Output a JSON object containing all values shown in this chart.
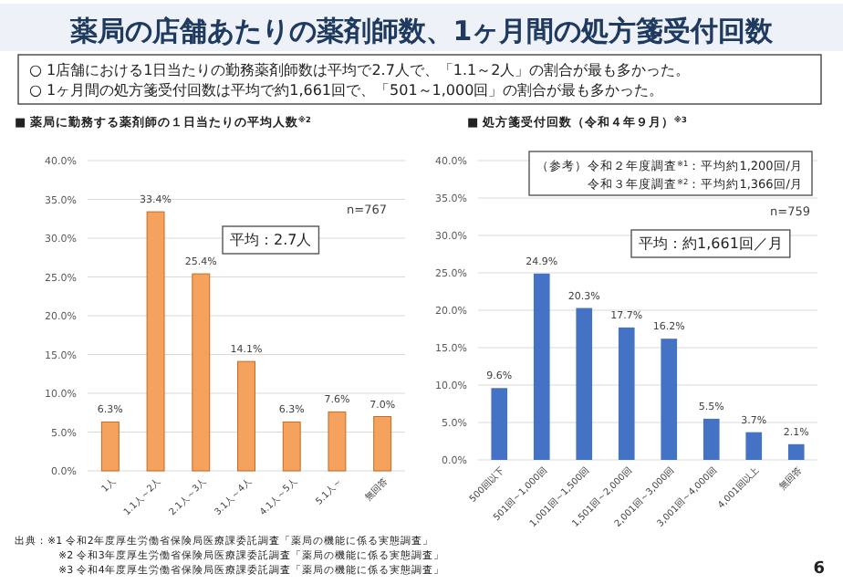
{
  "chart_data": [
    {
      "type": "bar",
      "title": "薬局の店舗あたりの薬剤師数、1ヶ月間の処方箋受付回数",
      "subtitle": "■ 薬局に勤務する薬剤師の１日当たりの平均人数$^{※2}$",
      "categories": [
        "1人",
        "1.1人～2人",
        "2.1人～3人",
        "3.1人～4人",
        "4.1人～5人",
        "5.1人～",
        "無回答"
      ],
      "values": [
        6.3,
        33.4,
        25.4,
        14.1,
        6.3,
        7.6,
        7.0
      ],
      "value_labels": [
        "6.3%",
        "33.4%",
        "25.4%",
        "14.1%",
        "6.3%",
        "7.6%",
        "7.0%"
      ],
      "color": "#f4a25e",
      "ylim": [
        0,
        40
      ],
      "yticks": [
        {
          "value": 0,
          "label": "0.0%"
        },
        {
          "value": 5,
          "label": "5.0%"
        },
        {
          "value": 10,
          "label": "10.0%"
        },
        {
          "value": 15,
          "label": "15.0%"
        },
        {
          "value": 20,
          "label": "20.0%"
        },
        {
          "value": 25,
          "label": "25.0%"
        },
        {
          "value": 30,
          "label": "30.0%"
        },
        {
          "value": 35,
          "label": "35.0%"
        },
        {
          "value": 40,
          "label": "40.0%"
        }
      ],
      "grid": "y",
      "annotations": [
        "○ 1店舗における1日当たりの勤務薬剤師数は平均で2.7人で、「1.1～2人」の割合が最も多かった。",
        "○ 1ヶ月間の処方箋受付回数は平均で約1,661回で、「501～1,000回」の割合が最も多かった。",
        "n=767",
        "平均：2.7人",
        "出典：※1 令和2年度厚生労働省保険局医療課委託調査「薬局の機能に係る実態調査」",
        "※2 令和3年度厚生労働省保険局医療課委託調査「薬局の機能に係る実態調査」",
        "※3 令和4年度厚生労働省保険局医療課委託調査「薬局の機能に係る実態調査」",
        "6"
      ]
    },
    {
      "type": "bar",
      "title": "■ 処方箋受付回数（令和４年９月）$^{※3}$",
      "categories": [
        "500回以下",
        "501回～1,000回",
        "1,001回～1,500回",
        "1,501回～2,000回",
        "2,001回～3,000回",
        "3,001回～4,000回",
        "4,001回以上",
        "無回答"
      ],
      "values": [
        9.6,
        24.9,
        20.3,
        17.7,
        16.2,
        5.5,
        3.7,
        2.1
      ],
      "value_labels": [
        "9.6%",
        "24.9%",
        "20.3%",
        "17.7%",
        "16.2%",
        "5.5%",
        "3.7%",
        "2.1%"
      ],
      "color": "#4472c4",
      "ylim": [
        0,
        40
      ],
      "yticks": [
        {
          "value": 0,
          "label": "0.0%"
        },
        {
          "value": 5,
          "label": "5.0%"
        },
        {
          "value": 10,
          "label": "10.0%"
        },
        {
          "value": 15,
          "label": "15.0%"
        },
        {
          "value": 20,
          "label": "20.0%"
        },
        {
          "value": 25,
          "label": "25.0%"
        },
        {
          "value": 30,
          "label": "30.0%"
        },
        {
          "value": 35,
          "label": "35.0%"
        },
        {
          "value": 40,
          "label": "40.0%"
        }
      ],
      "grid": "y",
      "annotations": [
        "（参考）令和２年度調査$^{※1}$：平均約1,200回/月",
        "令和３年度調査$^{※2}$：平均約1,366回/月",
        "n=759",
        "平均：約1,661回／月"
      ]
    }
  ]
}
